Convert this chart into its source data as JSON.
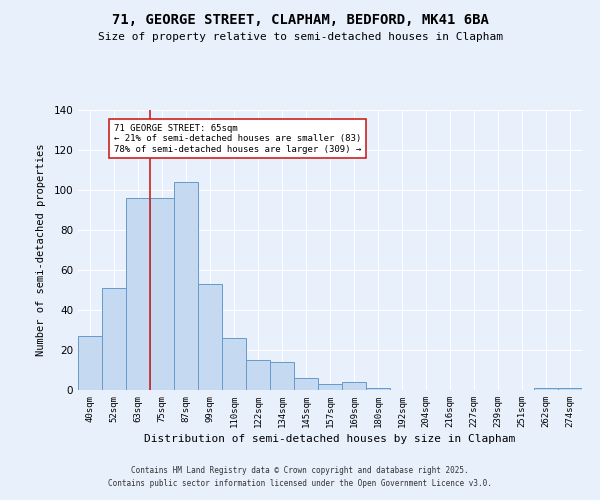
{
  "title1": "71, GEORGE STREET, CLAPHAM, BEDFORD, MK41 6BA",
  "title2": "Size of property relative to semi-detached houses in Clapham",
  "xlabel": "Distribution of semi-detached houses by size in Clapham",
  "ylabel": "Number of semi-detached properties",
  "categories": [
    "40sqm",
    "52sqm",
    "63sqm",
    "75sqm",
    "87sqm",
    "99sqm",
    "110sqm",
    "122sqm",
    "134sqm",
    "145sqm",
    "157sqm",
    "169sqm",
    "180sqm",
    "192sqm",
    "204sqm",
    "216sqm",
    "227sqm",
    "239sqm",
    "251sqm",
    "262sqm",
    "274sqm"
  ],
  "values": [
    27,
    51,
    96,
    96,
    104,
    53,
    26,
    15,
    14,
    6,
    3,
    4,
    1,
    0,
    0,
    0,
    0,
    0,
    0,
    1,
    1
  ],
  "bar_color": "#c5d9f0",
  "bar_edge_color": "#6699cc",
  "vline_x_index": 2.5,
  "vline_color": "#cc2222",
  "annotation_title": "71 GEORGE STREET: 65sqm",
  "annotation_line1": "← 21% of semi-detached houses are smaller (83)",
  "annotation_line2": "78% of semi-detached houses are larger (309) →",
  "annotation_box_color": "#ffffff",
  "annotation_box_edge": "#cc2222",
  "footer1": "Contains HM Land Registry data © Crown copyright and database right 2025.",
  "footer2": "Contains public sector information licensed under the Open Government Licence v3.0.",
  "bg_color": "#e8f0fc",
  "plot_bg_color": "#e8f0fc",
  "ylim": [
    0,
    140
  ],
  "yticks": [
    0,
    20,
    40,
    60,
    80,
    100,
    120,
    140
  ]
}
